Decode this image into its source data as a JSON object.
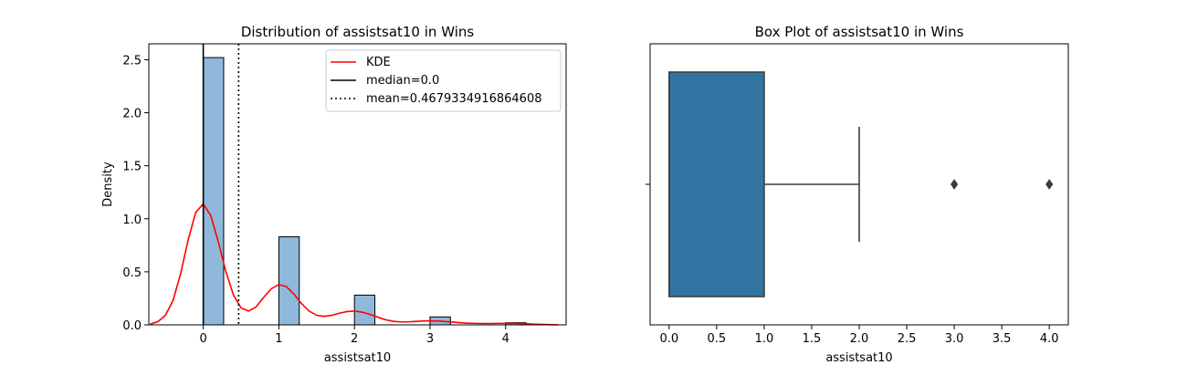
{
  "chart_data": [
    {
      "type": "bar",
      "title": "Distribution of assistsat10 in Wins",
      "xlabel": "assistsat10",
      "ylabel": "Density",
      "xlim": [
        -0.72,
        4.8
      ],
      "ylim": [
        0,
        2.65
      ],
      "xticks": [
        0,
        1,
        2,
        3,
        4
      ],
      "xtick_labels": [
        "0",
        "1",
        "2",
        "3",
        "4"
      ],
      "yticks": [
        0.0,
        0.5,
        1.0,
        1.5,
        2.0,
        2.5
      ],
      "ytick_labels": [
        "0.0",
        "0.5",
        "1.0",
        "1.5",
        "2.0",
        "2.5"
      ],
      "bar_width": 0.27,
      "bars": [
        {
          "x": 0.0,
          "value": 2.52
        },
        {
          "x": 1.0,
          "value": 0.83
        },
        {
          "x": 2.0,
          "value": 0.28
        },
        {
          "x": 3.0,
          "value": 0.075
        },
        {
          "x": 4.0,
          "value": 0.02
        }
      ],
      "bar_color": "#8fb8da",
      "kde": {
        "x": [
          -0.7,
          -0.6,
          -0.5,
          -0.4,
          -0.3,
          -0.2,
          -0.1,
          0.0,
          0.1,
          0.2,
          0.3,
          0.4,
          0.5,
          0.6,
          0.7,
          0.8,
          0.9,
          1.0,
          1.1,
          1.2,
          1.3,
          1.4,
          1.5,
          1.6,
          1.7,
          1.8,
          1.9,
          2.0,
          2.1,
          2.2,
          2.3,
          2.4,
          2.5,
          2.6,
          2.7,
          2.8,
          2.9,
          3.0,
          3.1,
          3.2,
          3.3,
          3.4,
          3.5,
          3.6,
          3.7,
          3.8,
          3.9,
          4.0,
          4.1,
          4.2,
          4.3,
          4.4,
          4.5,
          4.6,
          4.7
        ],
        "y": [
          0.008,
          0.03,
          0.09,
          0.23,
          0.48,
          0.8,
          1.06,
          1.14,
          1.03,
          0.78,
          0.5,
          0.28,
          0.16,
          0.13,
          0.17,
          0.26,
          0.34,
          0.38,
          0.36,
          0.29,
          0.2,
          0.13,
          0.09,
          0.08,
          0.09,
          0.11,
          0.125,
          0.13,
          0.12,
          0.1,
          0.075,
          0.05,
          0.035,
          0.028,
          0.028,
          0.032,
          0.036,
          0.038,
          0.036,
          0.032,
          0.026,
          0.02,
          0.016,
          0.014,
          0.013,
          0.013,
          0.014,
          0.015,
          0.014,
          0.012,
          0.009,
          0.006,
          0.004,
          0.002,
          0.001
        ],
        "color": "#ff0000"
      },
      "median_line": 0.0,
      "mean_line": 0.4679334916864608,
      "legend": {
        "position": "upper right",
        "entries": [
          "KDE",
          "median=0.0",
          "mean=0.4679334916864608"
        ]
      }
    },
    {
      "type": "box",
      "title": "Box Plot of assistsat10 in Wins",
      "xlabel": "assistsat10",
      "xlim": [
        -0.2,
        4.2
      ],
      "xticks": [
        0.0,
        0.5,
        1.0,
        1.5,
        2.0,
        2.5,
        3.0,
        3.5,
        4.0
      ],
      "xtick_labels": [
        "0.0",
        "0.5",
        "1.0",
        "1.5",
        "2.0",
        "2.5",
        "3.0",
        "3.5",
        "4.0"
      ],
      "q1": 0.0,
      "median": 0.0,
      "q3": 1.0,
      "whisker_low": 0.0,
      "whisker_high": 2.0,
      "outliers": [
        3.0,
        4.0
      ],
      "box_color": "#3274a1"
    }
  ]
}
